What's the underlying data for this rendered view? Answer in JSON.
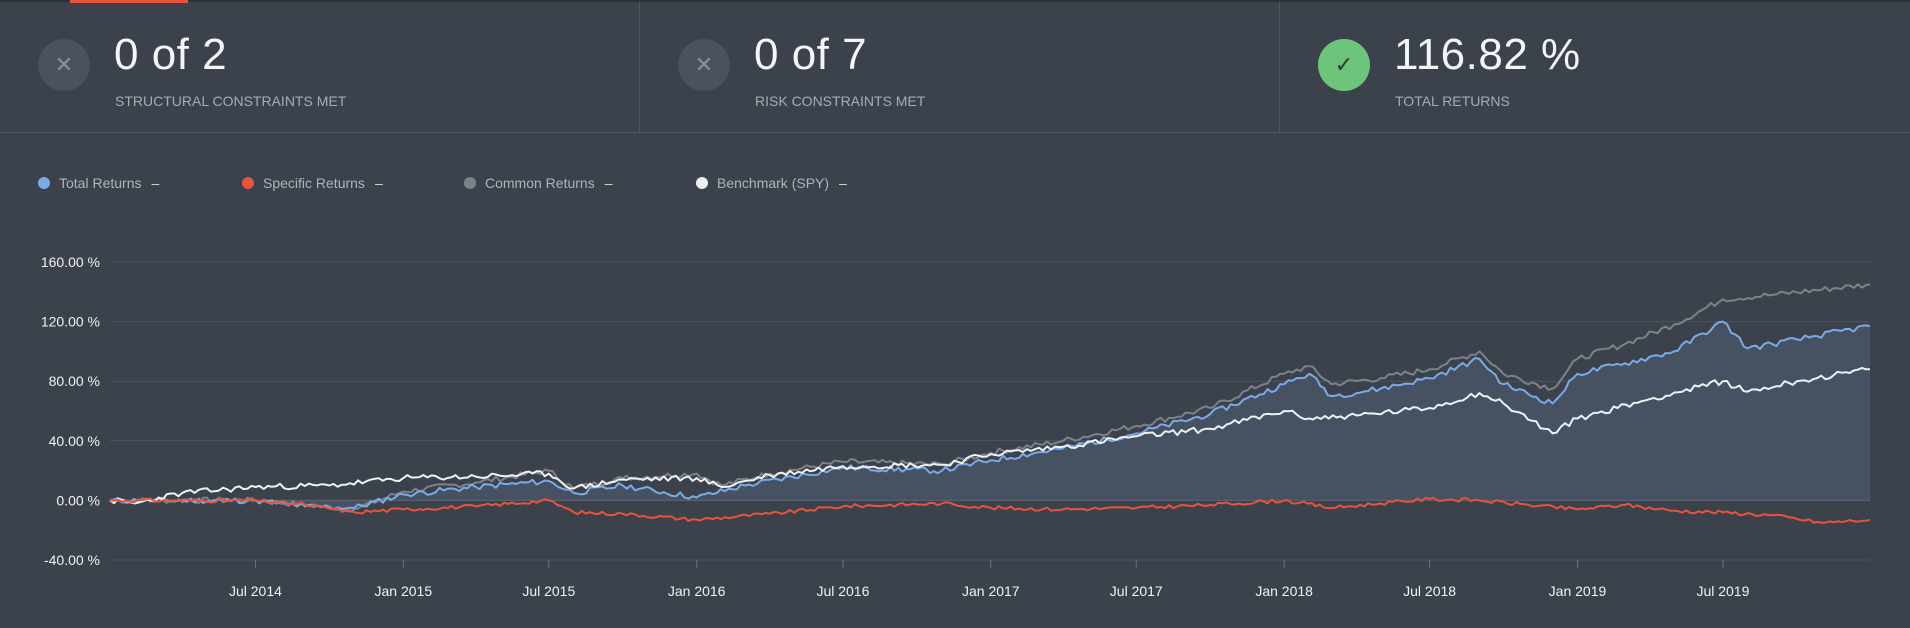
{
  "stats": [
    {
      "value": "0 of 2",
      "label": "STRUCTURAL CONSTRAINTS MET",
      "icon": "x-icon",
      "status": "fail"
    },
    {
      "value": "0 of 7",
      "label": "RISK CONSTRAINTS MET",
      "icon": "x-icon",
      "status": "fail"
    },
    {
      "value": "116.82 %",
      "label": "TOTAL RETURNS",
      "icon": "check-icon",
      "status": "pass"
    }
  ],
  "legend": [
    {
      "name": "Total Returns",
      "value": "–",
      "color": "#7aaae8"
    },
    {
      "name": "Specific Returns",
      "value": "–",
      "color": "#e8533b"
    },
    {
      "name": "Common Returns",
      "value": "–",
      "color": "#7d828a"
    },
    {
      "name": "Benchmark (SPY)",
      "value": "–",
      "color": "#eef0f2"
    }
  ],
  "colors": {
    "accent": "#e8533b",
    "pass": "#6dc57c",
    "fail": "#4b525c"
  },
  "chart_data": {
    "type": "line",
    "x_start": "2014-01-01",
    "x_end": "2019-12-31",
    "ylim": [
      -40,
      160
    ],
    "yticks": [
      -40,
      0,
      40,
      80,
      120,
      160
    ],
    "ytick_labels": [
      "-40.00 %",
      "0.00 %",
      "40.00 %",
      "80.00 %",
      "120.00 %",
      "160.00 %"
    ],
    "xticks": [
      "2014-07-01",
      "2015-01-01",
      "2015-07-01",
      "2016-01-01",
      "2016-07-01",
      "2017-01-01",
      "2017-07-01",
      "2018-01-01",
      "2018-07-01",
      "2019-01-01",
      "2019-07-01"
    ],
    "xtick_labels": [
      "Jul 2014",
      "Jan 2015",
      "Jul 2015",
      "Jan 2016",
      "Jul 2016",
      "Jan 2017",
      "Jul 2017",
      "Jan 2018",
      "Jul 2018",
      "Jan 2019",
      "Jul 2019"
    ],
    "grid": true,
    "legend_position": "top-left",
    "series": [
      {
        "name": "Common Returns",
        "color": "#7d828a",
        "points": [
          [
            "2014-01-01",
            0
          ],
          [
            "2014-07-01",
            0
          ],
          [
            "2014-09-01",
            -3
          ],
          [
            "2014-11-01",
            -6
          ],
          [
            "2015-01-01",
            6
          ],
          [
            "2015-04-01",
            12
          ],
          [
            "2015-07-01",
            20
          ],
          [
            "2015-08-01",
            8
          ],
          [
            "2015-10-01",
            15
          ],
          [
            "2016-01-01",
            18
          ],
          [
            "2016-02-01",
            10
          ],
          [
            "2016-04-01",
            18
          ],
          [
            "2016-07-01",
            26
          ],
          [
            "2016-11-01",
            24
          ],
          [
            "2017-01-01",
            32
          ],
          [
            "2017-04-01",
            40
          ],
          [
            "2017-07-01",
            50
          ],
          [
            "2017-10-01",
            62
          ],
          [
            "2018-01-01",
            85
          ],
          [
            "2018-02-01",
            90
          ],
          [
            "2018-03-01",
            78
          ],
          [
            "2018-05-01",
            82
          ],
          [
            "2018-07-01",
            88
          ],
          [
            "2018-09-01",
            100
          ],
          [
            "2018-10-01",
            85
          ],
          [
            "2018-12-01",
            75
          ],
          [
            "2019-01-01",
            95
          ],
          [
            "2019-03-01",
            105
          ],
          [
            "2019-05-01",
            118
          ],
          [
            "2019-07-01",
            135
          ],
          [
            "2019-09-01",
            138
          ],
          [
            "2019-12-31",
            145
          ]
        ]
      },
      {
        "name": "Total Returns",
        "color": "#7aaae8",
        "points": [
          [
            "2014-01-01",
            0
          ],
          [
            "2014-07-01",
            0
          ],
          [
            "2014-09-01",
            -4
          ],
          [
            "2014-11-01",
            -5
          ],
          [
            "2015-01-01",
            4
          ],
          [
            "2015-04-01",
            9
          ],
          [
            "2015-07-01",
            13
          ],
          [
            "2015-08-01",
            5
          ],
          [
            "2015-10-01",
            10
          ],
          [
            "2016-01-01",
            2
          ],
          [
            "2016-03-01",
            10
          ],
          [
            "2016-07-01",
            22
          ],
          [
            "2016-11-01",
            20
          ],
          [
            "2017-01-01",
            27
          ],
          [
            "2017-04-01",
            35
          ],
          [
            "2017-07-01",
            45
          ],
          [
            "2017-10-01",
            58
          ],
          [
            "2018-01-01",
            78
          ],
          [
            "2018-02-01",
            85
          ],
          [
            "2018-03-01",
            70
          ],
          [
            "2018-05-01",
            75
          ],
          [
            "2018-07-01",
            82
          ],
          [
            "2018-09-01",
            95
          ],
          [
            "2018-10-01",
            78
          ],
          [
            "2018-12-01",
            65
          ],
          [
            "2019-01-01",
            85
          ],
          [
            "2019-03-01",
            92
          ],
          [
            "2019-05-01",
            100
          ],
          [
            "2019-07-01",
            120
          ],
          [
            "2019-08-01",
            102
          ],
          [
            "2019-10-01",
            108
          ],
          [
            "2019-12-31",
            117
          ]
        ]
      },
      {
        "name": "Benchmark (SPY)",
        "color": "#eef0f2",
        "points": [
          [
            "2014-01-01",
            0
          ],
          [
            "2014-02-01",
            -2
          ],
          [
            "2014-04-01",
            5
          ],
          [
            "2014-07-01",
            9
          ],
          [
            "2014-10-01",
            10
          ],
          [
            "2015-01-01",
            15
          ],
          [
            "2015-04-01",
            16
          ],
          [
            "2015-07-01",
            18
          ],
          [
            "2015-08-01",
            8
          ],
          [
            "2015-10-01",
            14
          ],
          [
            "2016-01-01",
            15
          ],
          [
            "2016-02-01",
            9
          ],
          [
            "2016-04-01",
            17
          ],
          [
            "2016-07-01",
            23
          ],
          [
            "2016-11-01",
            24
          ],
          [
            "2017-01-01",
            31
          ],
          [
            "2017-04-01",
            36
          ],
          [
            "2017-07-01",
            43
          ],
          [
            "2017-10-01",
            48
          ],
          [
            "2018-01-01",
            60
          ],
          [
            "2018-02-01",
            55
          ],
          [
            "2018-04-01",
            57
          ],
          [
            "2018-07-01",
            62
          ],
          [
            "2018-09-01",
            72
          ],
          [
            "2018-10-01",
            65
          ],
          [
            "2018-12-01",
            45
          ],
          [
            "2019-01-01",
            55
          ],
          [
            "2019-04-01",
            68
          ],
          [
            "2019-07-01",
            80
          ],
          [
            "2019-08-01",
            73
          ],
          [
            "2019-10-01",
            80
          ],
          [
            "2019-12-31",
            88
          ]
        ]
      },
      {
        "name": "Specific Returns",
        "color": "#e8533b",
        "points": [
          [
            "2014-01-01",
            0
          ],
          [
            "2014-07-01",
            0
          ],
          [
            "2014-09-01",
            -3
          ],
          [
            "2014-11-01",
            -8
          ],
          [
            "2015-01-01",
            -6
          ],
          [
            "2015-04-01",
            -4
          ],
          [
            "2015-07-01",
            0
          ],
          [
            "2015-08-01",
            -8
          ],
          [
            "2015-10-01",
            -9
          ],
          [
            "2016-01-01",
            -13
          ],
          [
            "2016-04-01",
            -9
          ],
          [
            "2016-07-01",
            -4
          ],
          [
            "2016-11-01",
            -2
          ],
          [
            "2017-01-01",
            -5
          ],
          [
            "2017-04-01",
            -6
          ],
          [
            "2017-07-01",
            -5
          ],
          [
            "2017-10-01",
            -3
          ],
          [
            "2018-01-01",
            0
          ],
          [
            "2018-03-01",
            -5
          ],
          [
            "2018-05-01",
            -2
          ],
          [
            "2018-07-01",
            1
          ],
          [
            "2018-09-01",
            0
          ],
          [
            "2018-11-01",
            -3
          ],
          [
            "2019-01-01",
            -6
          ],
          [
            "2019-03-01",
            -3
          ],
          [
            "2019-05-01",
            -7
          ],
          [
            "2019-07-01",
            -8
          ],
          [
            "2019-09-01",
            -10
          ],
          [
            "2019-11-01",
            -15
          ],
          [
            "2019-12-31",
            -13
          ]
        ]
      }
    ]
  }
}
